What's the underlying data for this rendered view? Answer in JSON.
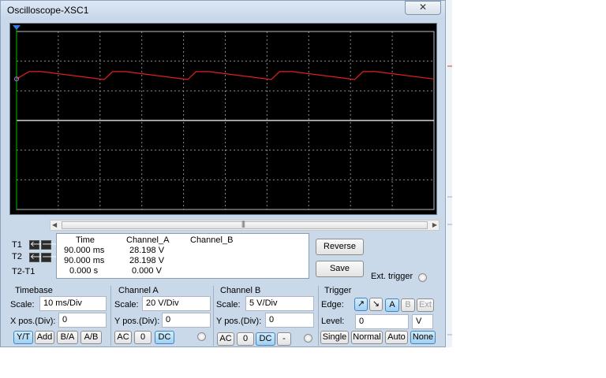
{
  "window": {
    "title": "Oscilloscope-XSC1",
    "close_glyph": "✕"
  },
  "colors": {
    "trace_a": "#e02020",
    "trace_b": "#ffffff",
    "grid": "#8a8a8a",
    "screen_bg": "#000000",
    "cursor": "#00c000"
  },
  "scroll": {
    "grip": "|||"
  },
  "cursors": {
    "t1_label": "T1",
    "t2_label": "T2",
    "delta_label": "T2-T1",
    "left_arrow": "🡐",
    "right_arrow": "🡒"
  },
  "readout": {
    "headers": {
      "time": "Time",
      "ch_a": "Channel_A",
      "ch_b": "Channel_B"
    },
    "t1": {
      "time": "90.000 ms",
      "ch_a": "28.198 V",
      "ch_b": ""
    },
    "t2": {
      "time": "90.000 ms",
      "ch_a": "28.198 V",
      "ch_b": ""
    },
    "delta": {
      "time": "0.000 s",
      "ch_a": "0.000 V",
      "ch_b": ""
    }
  },
  "buttons": {
    "reverse": "Reverse",
    "save": "Save"
  },
  "ext_trigger": "Ext. trigger",
  "timebase": {
    "title": "Timebase",
    "scale_label": "Scale:",
    "scale_value": "10 ms/Div",
    "xpos_label": "X pos.(Div):",
    "xpos_value": "0",
    "modes": [
      "Y/T",
      "Add",
      "B/A",
      "A/B"
    ],
    "selected_mode": "Y/T"
  },
  "channel_a": {
    "title": "Channel A",
    "scale_label": "Scale:",
    "scale_value": "20 V/Div",
    "ypos_label": "Y pos.(Div):",
    "ypos_value": "0",
    "coupling": [
      "AC",
      "0",
      "DC"
    ],
    "selected_coupling": "DC"
  },
  "channel_b": {
    "title": "Channel B",
    "scale_label": "Scale:",
    "scale_value": "5 V/Div",
    "ypos_label": "Y pos.(Div):",
    "ypos_value": "0",
    "coupling": [
      "AC",
      "0",
      "DC",
      "-"
    ],
    "selected_coupling": "DC"
  },
  "trigger": {
    "title": "Trigger",
    "edge_label": "Edge:",
    "edge_rising": "↗",
    "edge_falling": "↘",
    "sources": [
      "A",
      "B",
      "Ext"
    ],
    "selected_source": "A",
    "level_label": "Level:",
    "level_value": "0",
    "level_unit": "V",
    "modes": [
      "Single",
      "Normal",
      "Auto",
      "None"
    ],
    "selected_mode": "None"
  },
  "chart_data": {
    "type": "line",
    "time_per_div_ms": 10,
    "volts_per_div_a": 20,
    "volts_per_div_b": 5,
    "x_divisions": 10,
    "y_divisions": 6,
    "series": [
      {
        "name": "Channel_A",
        "x_div": [
          0,
          0.15,
          0.3,
          1.05,
          1.15,
          1.3,
          2.05,
          2.15,
          2.3,
          3.05,
          3.15,
          3.3,
          4.05,
          4.15,
          4.3,
          5.0
        ],
        "y_div": [
          1.4,
          1.65,
          1.65,
          1.38,
          1.65,
          1.65,
          1.38,
          1.65,
          1.65,
          1.38,
          1.65,
          1.65,
          1.38,
          1.65,
          1.65,
          1.4
        ]
      },
      {
        "name": "Channel_B",
        "x_div": [
          0,
          5.0
        ],
        "y_div": [
          0,
          0
        ]
      }
    ],
    "grid": true
  }
}
